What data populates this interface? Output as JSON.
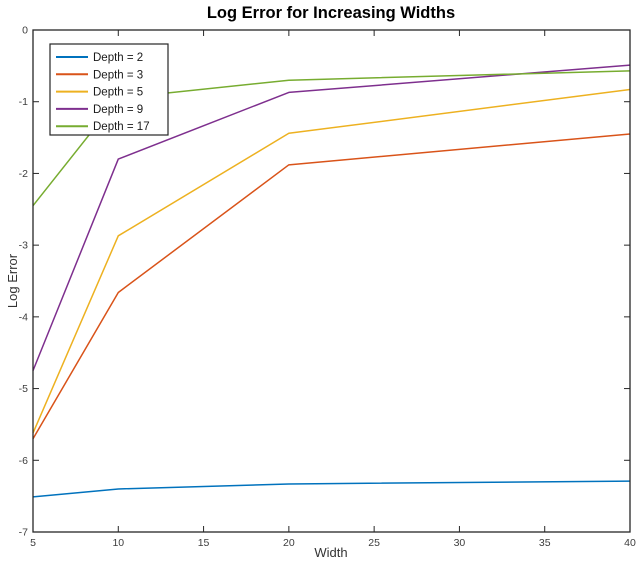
{
  "figure": {
    "background": "#ffffff",
    "axis_color": "#262626",
    "tick_label_color": "#3d3d3d"
  },
  "chart_data": {
    "type": "line",
    "title": "Log Error for Increasing Widths",
    "xlabel": "Width",
    "ylabel": "Log Error",
    "xlim": [
      5,
      40
    ],
    "ylim": [
      -7,
      0
    ],
    "x_ticks": [
      5,
      10,
      15,
      20,
      25,
      30,
      35,
      40
    ],
    "y_ticks": [
      0,
      -1,
      -2,
      -3,
      -4,
      -5,
      -6,
      -7
    ],
    "grid": false,
    "legend_position": "top-left",
    "legend_border_color": "#262626",
    "x": [
      5,
      10,
      20,
      40
    ],
    "series": [
      {
        "name": "Depth = 2",
        "color": "#0072BD",
        "values": [
          -6.51,
          -6.4,
          -6.33,
          -6.29
        ]
      },
      {
        "name": "Depth = 3",
        "color": "#D95319",
        "values": [
          -5.7,
          -3.66,
          -1.88,
          -1.45
        ]
      },
      {
        "name": "Depth = 5",
        "color": "#EDB120",
        "values": [
          -5.62,
          -2.87,
          -1.44,
          -0.83
        ]
      },
      {
        "name": "Depth = 9",
        "color": "#7E2F8E",
        "values": [
          -4.75,
          -1.8,
          -0.87,
          -0.49
        ]
      },
      {
        "name": "Depth = 17",
        "color": "#77AC30",
        "values": [
          -2.45,
          -0.95,
          -0.7,
          -0.57
        ]
      }
    ]
  }
}
